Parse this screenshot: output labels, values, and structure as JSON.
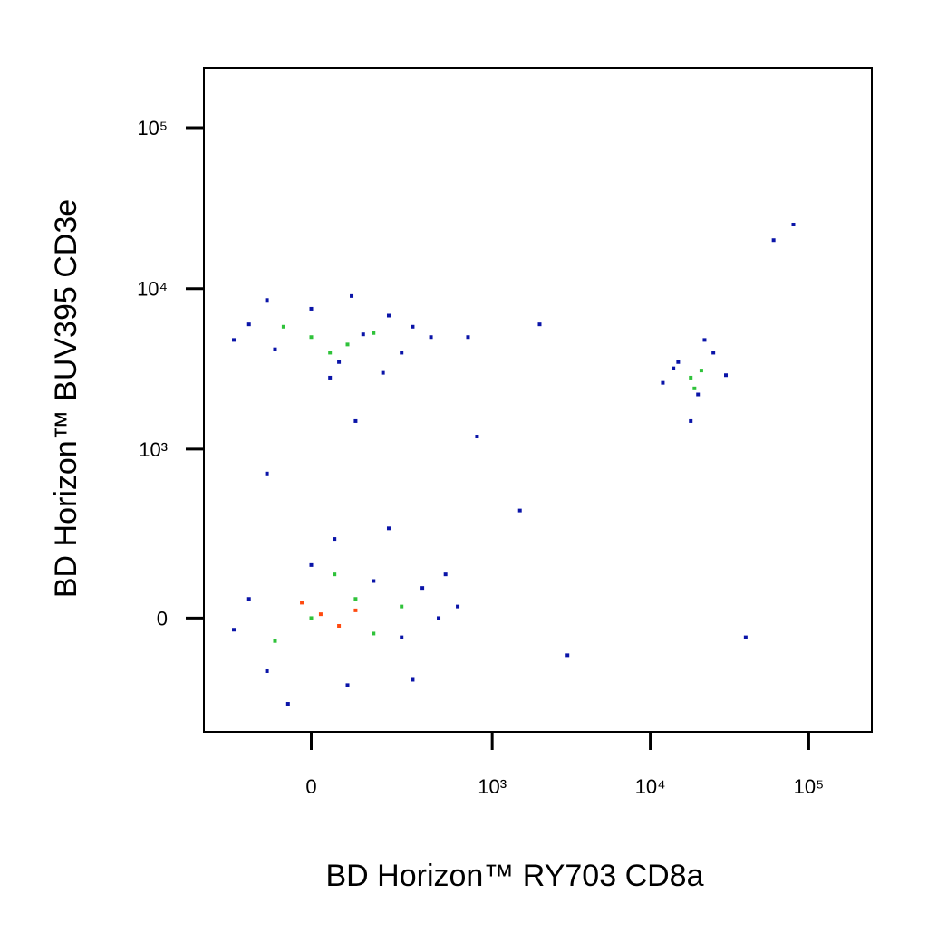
{
  "chart_data": {
    "type": "scatter",
    "xlabel": "BD Horizon™ RY703 CD8a",
    "ylabel": "BD Horizon™ BUV395 CD3e",
    "xscale": "biexponential",
    "yscale": "biexponential",
    "xlim": [
      -330,
      250000
    ],
    "ylim": [
      -440,
      235000
    ],
    "xticks": [
      0,
      {
        "value": 1000,
        "label": "10³"
      },
      {
        "value": 10000,
        "label": "10⁴"
      },
      {
        "value": 100000,
        "label": "10⁵"
      }
    ],
    "yticks": [
      0,
      {
        "value": 1000,
        "label": "10³"
      },
      {
        "value": 10000,
        "label": "10⁴"
      },
      {
        "value": 100000,
        "label": "10⁵"
      }
    ],
    "series": [
      {
        "color": "#0a14a8",
        "x": [
          -150,
          -80,
          0,
          60,
          120,
          200,
          250,
          -200,
          300,
          40,
          -100,
          180,
          400,
          90,
          -150,
          -100,
          0,
          80,
          150,
          250,
          350,
          450,
          -200,
          50,
          300,
          500,
          600,
          -50,
          200,
          15000,
          20000,
          25000,
          12000,
          30000,
          18000,
          22000,
          14000,
          700,
          1500,
          3000,
          60000,
          80000,
          2000,
          800,
          100,
          -100,
          40000
        ],
        "y": [
          6000,
          4200,
          7500,
          3500,
          5200,
          6800,
          4000,
          4800,
          5800,
          2800,
          8500,
          3000,
          5000,
          9000,
          50,
          -150,
          150,
          -200,
          100,
          -50,
          80,
          0,
          -30,
          250,
          -180,
          120,
          30,
          -280,
          300,
          3500,
          2200,
          4000,
          2600,
          2900,
          1500,
          4800,
          3200,
          5000,
          400,
          -100,
          20000,
          25000,
          6000,
          1200,
          1500,
          700,
          -50
        ]
      },
      {
        "color": "#2fc23a",
        "x": [
          0,
          80,
          -60,
          150,
          40,
          0,
          100,
          -80,
          150,
          50,
          250,
          18000,
          21000,
          19000
        ],
        "y": [
          5000,
          4500,
          5800,
          5300,
          4000,
          0,
          50,
          -60,
          -40,
          120,
          30,
          2800,
          3100,
          2400
        ]
      },
      {
        "color": "#ff4a10",
        "x": [
          20,
          60,
          -20,
          100
        ],
        "y": [
          10,
          -20,
          40,
          20
        ]
      }
    ]
  }
}
